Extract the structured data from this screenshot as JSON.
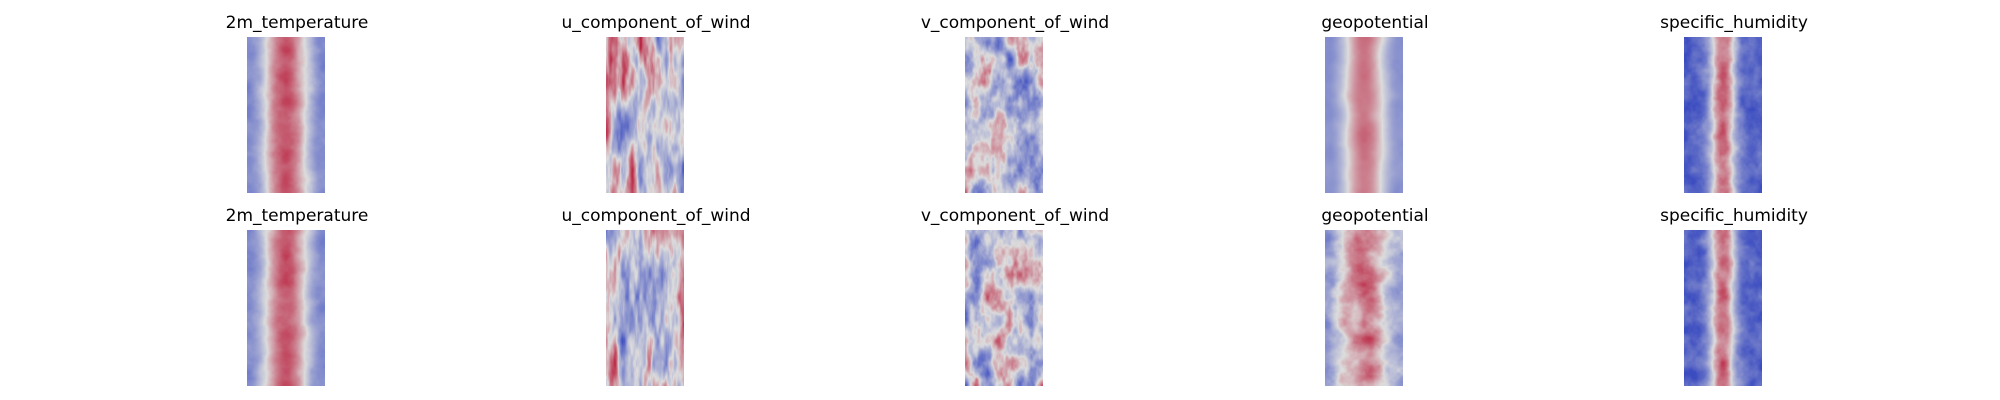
{
  "figure": {
    "colormap": "coolwarm",
    "colors": {
      "cold": "#3b4cc0",
      "neutral": "#dddddd",
      "warm": "#b40426"
    },
    "rows": [
      {
        "panels": [
          {
            "title": "2m_temperature",
            "pattern": "warm_band"
          },
          {
            "title": "u_component_of_wind",
            "pattern": "streaks"
          },
          {
            "title": "v_component_of_wind",
            "pattern": "speckle"
          },
          {
            "title": "geopotential",
            "pattern": "warm_band_smooth"
          },
          {
            "title": "specific_humidity",
            "pattern": "humid_core"
          }
        ]
      },
      {
        "panels": [
          {
            "title": "2m_temperature",
            "pattern": "warm_band"
          },
          {
            "title": "u_component_of_wind",
            "pattern": "streaks"
          },
          {
            "title": "v_component_of_wind",
            "pattern": "speckle"
          },
          {
            "title": "geopotential",
            "pattern": "warm_band_blobs"
          },
          {
            "title": "specific_humidity",
            "pattern": "humid_core"
          }
        ]
      }
    ]
  }
}
